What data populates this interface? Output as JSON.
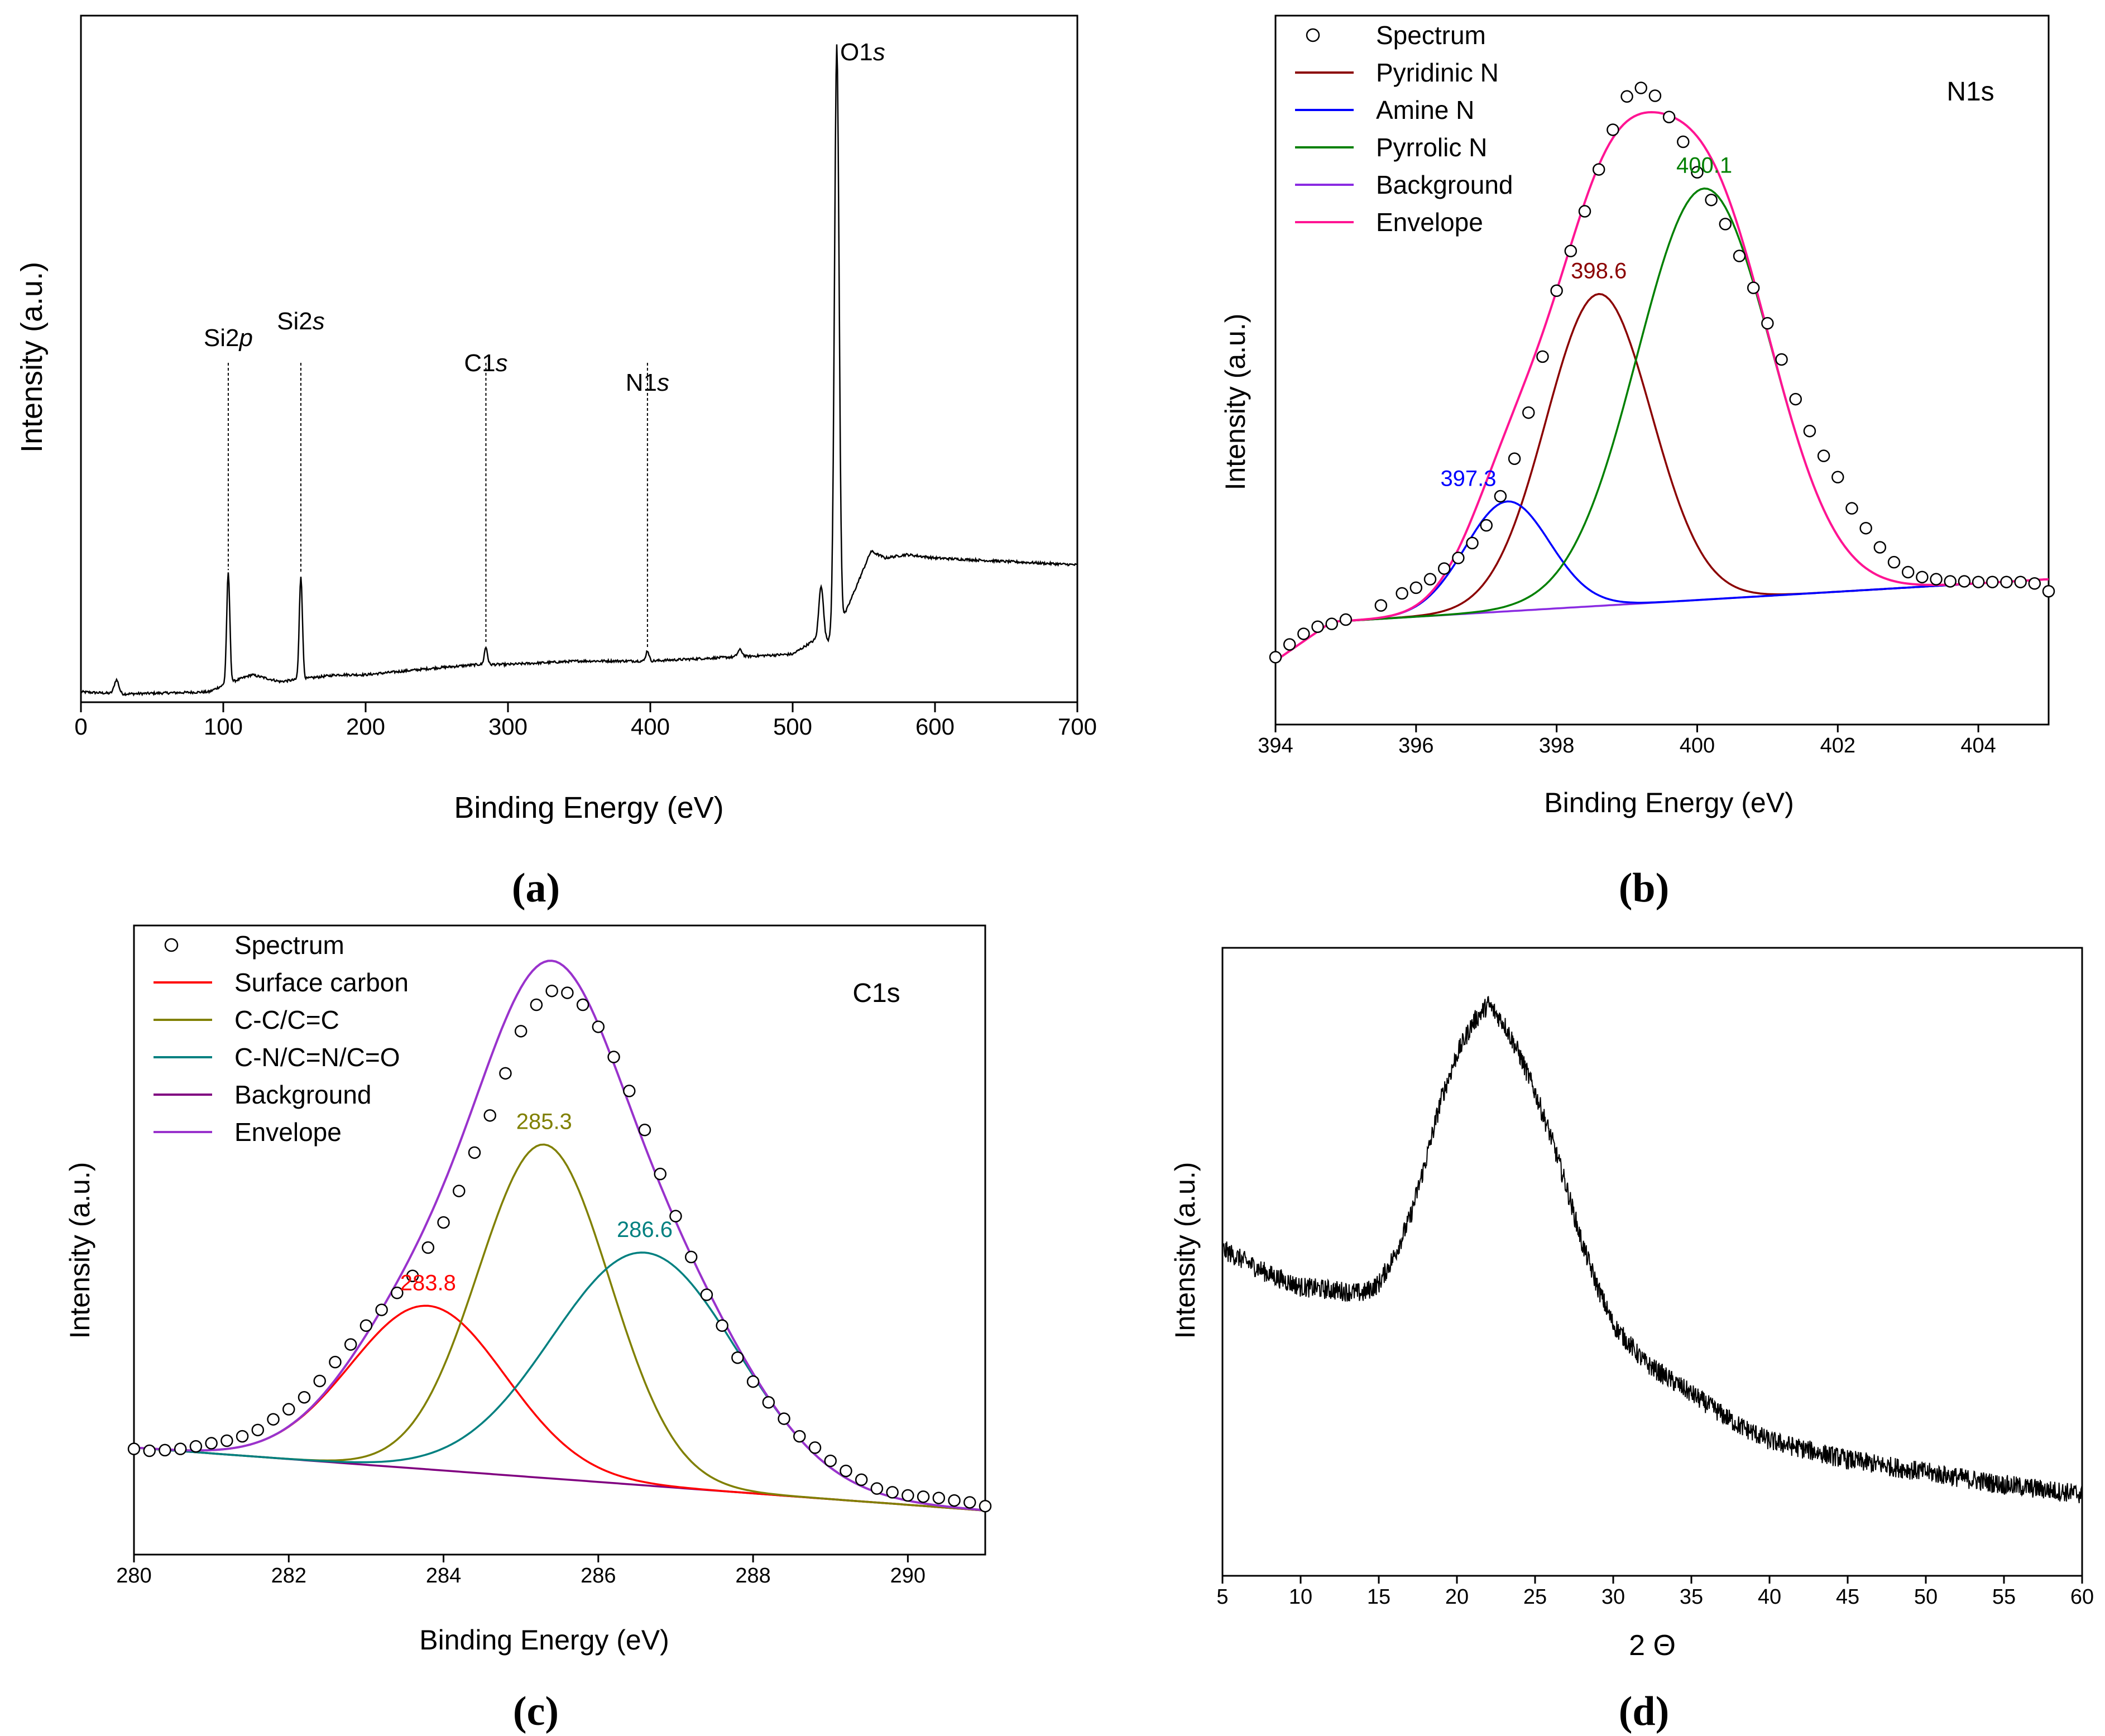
{
  "colors": {
    "axis": "#000000",
    "survey": "#000000",
    "xrd": "#000000",
    "n_pyridinic": "#8b0000",
    "n_amine": "#0000ff",
    "n_pyrrolic": "#008000",
    "n_background": "#8a2be2",
    "n_envelope": "#ff1493",
    "c_surface": "#ff0000",
    "c_cc": "#808000",
    "c_cn": "#008080",
    "c_background": "#800080",
    "c_envelope": "#9932cc"
  },
  "chart_data": [
    {
      "id": "a",
      "type": "line",
      "caption": "(a)",
      "xlabel": "Binding Energy (eV)",
      "ylabel": "Intensity (a.u.)",
      "xlim": [
        0,
        700
      ],
      "ylim": [
        0,
        100
      ],
      "xticks": [
        "0",
        "100",
        "200",
        "300",
        "400",
        "500",
        "600",
        "700"
      ],
      "baseline": [
        [
          0,
          1.5
        ],
        [
          30,
          1.2
        ],
        [
          90,
          1.5
        ],
        [
          100,
          2.5
        ],
        [
          120,
          4
        ],
        [
          140,
          3
        ],
        [
          160,
          3.5
        ],
        [
          180,
          4
        ],
        [
          200,
          4
        ],
        [
          250,
          5
        ],
        [
          280,
          5.5
        ],
        [
          300,
          5.5
        ],
        [
          350,
          6
        ],
        [
          400,
          6
        ],
        [
          450,
          6.5
        ],
        [
          500,
          7
        ],
        [
          515,
          9
        ],
        [
          525,
          9
        ],
        [
          535,
          12
        ],
        [
          545,
          17
        ],
        [
          555,
          22
        ],
        [
          565,
          21
        ],
        [
          580,
          21.5
        ],
        [
          600,
          21
        ],
        [
          650,
          20.5
        ],
        [
          700,
          20
        ]
      ],
      "peaks": [
        {
          "label": "Si2",
          "italic": "p",
          "x": 103.5,
          "height": 16
        },
        {
          "label": "Si2",
          "italic": "s",
          "x": 154.5,
          "height": 15
        },
        {
          "label": "C1",
          "italic": "s",
          "x": 284.5,
          "height": 2.5
        },
        {
          "label": "N1",
          "italic": "s",
          "x": 398,
          "height": 1.5
        },
        {
          "label": "O1",
          "italic": "s",
          "x": 531,
          "height": 85
        }
      ],
      "minor_peaks": [
        [
          25,
          2
        ],
        [
          520,
          8
        ],
        [
          463,
          1
        ]
      ]
    },
    {
      "id": "b",
      "type": "line",
      "caption": "(b)",
      "panel_label": "N1s",
      "xlabel": "Binding Energy (eV)",
      "ylabel": "Intensity (a.u.)",
      "xlim": [
        394,
        405
      ],
      "ylim": [
        0,
        100
      ],
      "xticks": [
        "394",
        "396",
        "398",
        "400",
        "402",
        "404"
      ],
      "legend": [
        "Spectrum",
        "Pyridinic N",
        "Amine N",
        "Pyrrolic N",
        "Background",
        "Envelope"
      ],
      "background": [
        [
          394,
          9
        ],
        [
          394.8,
          14.5
        ],
        [
          405,
          20.5
        ]
      ],
      "components": [
        {
          "name": "Pyridinic N",
          "center": 398.6,
          "height": 44,
          "width": 0.75,
          "label": "398.6"
        },
        {
          "name": "Amine N",
          "center": 397.3,
          "height": 15.5,
          "width": 0.6,
          "label": "397.3"
        },
        {
          "name": "Pyrrolic N",
          "center": 400.1,
          "height": 58,
          "width": 0.95,
          "label": "400.1"
        }
      ],
      "spectrum_points": [
        [
          394.0,
          9.5
        ],
        [
          394.2,
          11.3
        ],
        [
          394.4,
          12.8
        ],
        [
          394.6,
          13.8
        ],
        [
          394.8,
          14.2
        ],
        [
          395.0,
          14.8
        ],
        [
          395.5,
          16.8
        ],
        [
          395.8,
          18.5
        ],
        [
          396.0,
          19.3
        ],
        [
          396.2,
          20.5
        ],
        [
          396.4,
          22.0
        ],
        [
          396.6,
          23.5
        ],
        [
          396.8,
          25.6
        ],
        [
          397.0,
          28.1
        ],
        [
          397.2,
          32.2
        ],
        [
          397.4,
          37.5
        ],
        [
          397.6,
          44.0
        ],
        [
          397.8,
          51.9
        ],
        [
          398.0,
          61.2
        ],
        [
          398.2,
          66.8
        ],
        [
          398.4,
          72.4
        ],
        [
          398.6,
          78.3
        ],
        [
          398.8,
          83.9
        ],
        [
          399.0,
          88.6
        ],
        [
          399.2,
          89.8
        ],
        [
          399.4,
          88.7
        ],
        [
          399.6,
          85.7
        ],
        [
          399.8,
          82.2
        ],
        [
          400.0,
          77.9
        ],
        [
          400.2,
          74.0
        ],
        [
          400.4,
          70.6
        ],
        [
          400.6,
          66.1
        ],
        [
          400.8,
          61.6
        ],
        [
          401.0,
          56.6
        ],
        [
          401.2,
          51.5
        ],
        [
          401.4,
          45.9
        ],
        [
          401.6,
          41.4
        ],
        [
          401.8,
          37.9
        ],
        [
          402.0,
          34.9
        ],
        [
          402.2,
          30.5
        ],
        [
          402.4,
          27.7
        ],
        [
          402.6,
          25.0
        ],
        [
          402.8,
          22.9
        ],
        [
          403.0,
          21.5
        ],
        [
          403.2,
          20.8
        ],
        [
          403.4,
          20.5
        ],
        [
          403.6,
          20.2
        ],
        [
          403.8,
          20.2
        ],
        [
          404.0,
          20.1
        ],
        [
          404.2,
          20.1
        ],
        [
          404.4,
          20.1
        ],
        [
          404.6,
          20.1
        ],
        [
          404.8,
          19.9
        ],
        [
          405.0,
          18.8
        ]
      ]
    },
    {
      "id": "c",
      "type": "line",
      "caption": "(c)",
      "panel_label": "C1s",
      "xlabel": "Binding Energy (eV)",
      "ylabel": "Intensity (a.u.)",
      "xlim": [
        280,
        291
      ],
      "ylim": [
        0,
        100
      ],
      "xticks": [
        "280",
        "282",
        "284",
        "286",
        "288",
        "290"
      ],
      "legend": [
        "Spectrum",
        "Surface carbon",
        "C-C/C=C",
        "C-N/C=N/C=O",
        "Background",
        "Envelope"
      ],
      "background": [
        [
          280,
          17
        ],
        [
          291,
          7
        ]
      ],
      "components": [
        {
          "name": "Surface carbon",
          "center": 283.8,
          "height": 26,
          "width": 1.0,
          "label": "283.8"
        },
        {
          "name": "C-C/C=C",
          "center": 285.3,
          "height": 53,
          "width": 0.85,
          "label": "285.3"
        },
        {
          "name": "C-N/C=N/C=O",
          "center": 286.6,
          "height": 37,
          "width": 1.2,
          "label": "286.6"
        }
      ],
      "spectrum_points": [
        [
          280.0,
          16.8
        ],
        [
          280.2,
          16.5
        ],
        [
          280.4,
          16.6
        ],
        [
          280.6,
          16.8
        ],
        [
          280.8,
          17.2
        ],
        [
          281.0,
          17.7
        ],
        [
          281.2,
          18.1
        ],
        [
          281.4,
          18.8
        ],
        [
          281.6,
          19.8
        ],
        [
          281.8,
          21.5
        ],
        [
          282.0,
          23.1
        ],
        [
          282.2,
          25.0
        ],
        [
          282.4,
          27.6
        ],
        [
          282.6,
          30.6
        ],
        [
          282.8,
          33.4
        ],
        [
          283.0,
          36.4
        ],
        [
          283.2,
          38.9
        ],
        [
          283.4,
          41.6
        ],
        [
          283.6,
          44.3
        ],
        [
          283.8,
          48.8
        ],
        [
          284.0,
          52.8
        ],
        [
          284.2,
          57.8
        ],
        [
          284.4,
          63.9
        ],
        [
          284.6,
          69.8
        ],
        [
          284.8,
          76.5
        ],
        [
          285.0,
          83.2
        ],
        [
          285.2,
          87.4
        ],
        [
          285.4,
          89.6
        ],
        [
          285.6,
          89.3
        ],
        [
          285.8,
          87.4
        ],
        [
          286.0,
          83.9
        ],
        [
          286.2,
          79.1
        ],
        [
          286.4,
          73.7
        ],
        [
          286.6,
          67.5
        ],
        [
          286.8,
          60.5
        ],
        [
          287.0,
          53.8
        ],
        [
          287.2,
          47.3
        ],
        [
          287.4,
          41.3
        ],
        [
          287.6,
          36.4
        ],
        [
          287.8,
          31.3
        ],
        [
          288.0,
          27.5
        ],
        [
          288.2,
          24.2
        ],
        [
          288.4,
          21.6
        ],
        [
          288.6,
          18.8
        ],
        [
          288.8,
          17.0
        ],
        [
          289.0,
          14.9
        ],
        [
          289.2,
          13.3
        ],
        [
          289.4,
          11.9
        ],
        [
          289.6,
          10.5
        ],
        [
          289.8,
          9.9
        ],
        [
          290.0,
          9.4
        ],
        [
          290.2,
          9.2
        ],
        [
          290.4,
          9.0
        ],
        [
          290.6,
          8.6
        ],
        [
          290.8,
          8.3
        ],
        [
          291.0,
          7.7
        ]
      ]
    },
    {
      "id": "d",
      "type": "line",
      "caption": "(d)",
      "xlabel": "2 Θ",
      "ylabel": "Intensity (a.u.)",
      "xlim": [
        5,
        60
      ],
      "ylim": [
        0,
        100
      ],
      "xticks": [
        "5",
        "10",
        "15",
        "20",
        "25",
        "30",
        "35",
        "40",
        "45",
        "50",
        "55",
        "60"
      ],
      "profile": [
        [
          5,
          52
        ],
        [
          8,
          48
        ],
        [
          10,
          46
        ],
        [
          12,
          45.5
        ],
        [
          14,
          45
        ],
        [
          15,
          46.5
        ],
        [
          16,
          51
        ],
        [
          17,
          57
        ],
        [
          18,
          66
        ],
        [
          19,
          76
        ],
        [
          20,
          83
        ],
        [
          21,
          88
        ],
        [
          22,
          91
        ],
        [
          23,
          88
        ],
        [
          24,
          83
        ],
        [
          25,
          77
        ],
        [
          26,
          70
        ],
        [
          27,
          62
        ],
        [
          28,
          53
        ],
        [
          29,
          46
        ],
        [
          30,
          40
        ],
        [
          32,
          34
        ],
        [
          35,
          29
        ],
        [
          38,
          24
        ],
        [
          40,
          21.5
        ],
        [
          45,
          18.5
        ],
        [
          50,
          16.5
        ],
        [
          55,
          14.5
        ],
        [
          60,
          13
        ]
      ]
    }
  ]
}
